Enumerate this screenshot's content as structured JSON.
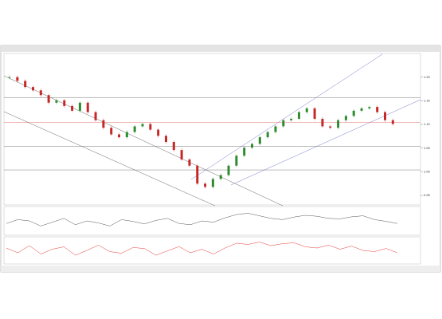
{
  "chart_data": {
    "type": "candlestick",
    "closes": [
      1.2,
      1.192,
      1.179,
      1.172,
      1.162,
      1.146,
      1.151,
      1.139,
      1.129,
      1.146,
      1.126,
      1.109,
      1.093,
      1.079,
      1.073,
      1.084,
      1.096,
      1.101,
      1.089,
      1.076,
      1.063,
      1.046,
      1.026,
      1.013,
      0.975,
      0.968,
      0.985,
      0.993,
      1.013,
      1.034,
      1.051,
      1.059,
      1.073,
      1.084,
      1.096,
      1.109,
      1.112,
      1.126,
      1.134,
      1.112,
      1.096,
      1.093,
      1.109,
      1.118,
      1.129,
      1.134,
      1.137,
      1.126,
      1.109,
      1.101
    ],
    "up_color": "#2e8b2e",
    "down_color": "#c62828",
    "ylim": [
      0.93,
      1.25
    ],
    "yticks": [
      {
        "value": 0.95,
        "label": "0.95"
      },
      {
        "value": 1.0,
        "label": "1.00"
      },
      {
        "value": 1.05,
        "label": "1.05"
      },
      {
        "value": 1.1,
        "label": "1.10"
      },
      {
        "value": 1.15,
        "label": "1.15"
      },
      {
        "value": 1.2,
        "label": "1.20"
      }
    ],
    "levels": [
      1.157,
      1.104,
      1.054,
      1.004
    ],
    "indicator1": [
      40,
      55,
      50,
      30,
      45,
      60,
      35,
      50,
      42,
      30,
      55,
      48,
      38,
      52,
      60,
      40,
      35,
      50,
      45,
      62,
      75,
      80,
      70,
      60,
      55,
      65,
      72,
      68,
      60,
      58,
      66,
      70,
      55,
      48,
      40
    ],
    "indicator1_lim": [
      0,
      100
    ],
    "indicator2": [
      60,
      40,
      70,
      35,
      55,
      65,
      30,
      50,
      72,
      45,
      38,
      62,
      58,
      30,
      48,
      66,
      40,
      55,
      35,
      60,
      80,
      75,
      85,
      70,
      78,
      82,
      65,
      60,
      72,
      55,
      68,
      50,
      45,
      58,
      40
    ],
    "indicator2_lim": [
      0,
      100
    ]
  }
}
